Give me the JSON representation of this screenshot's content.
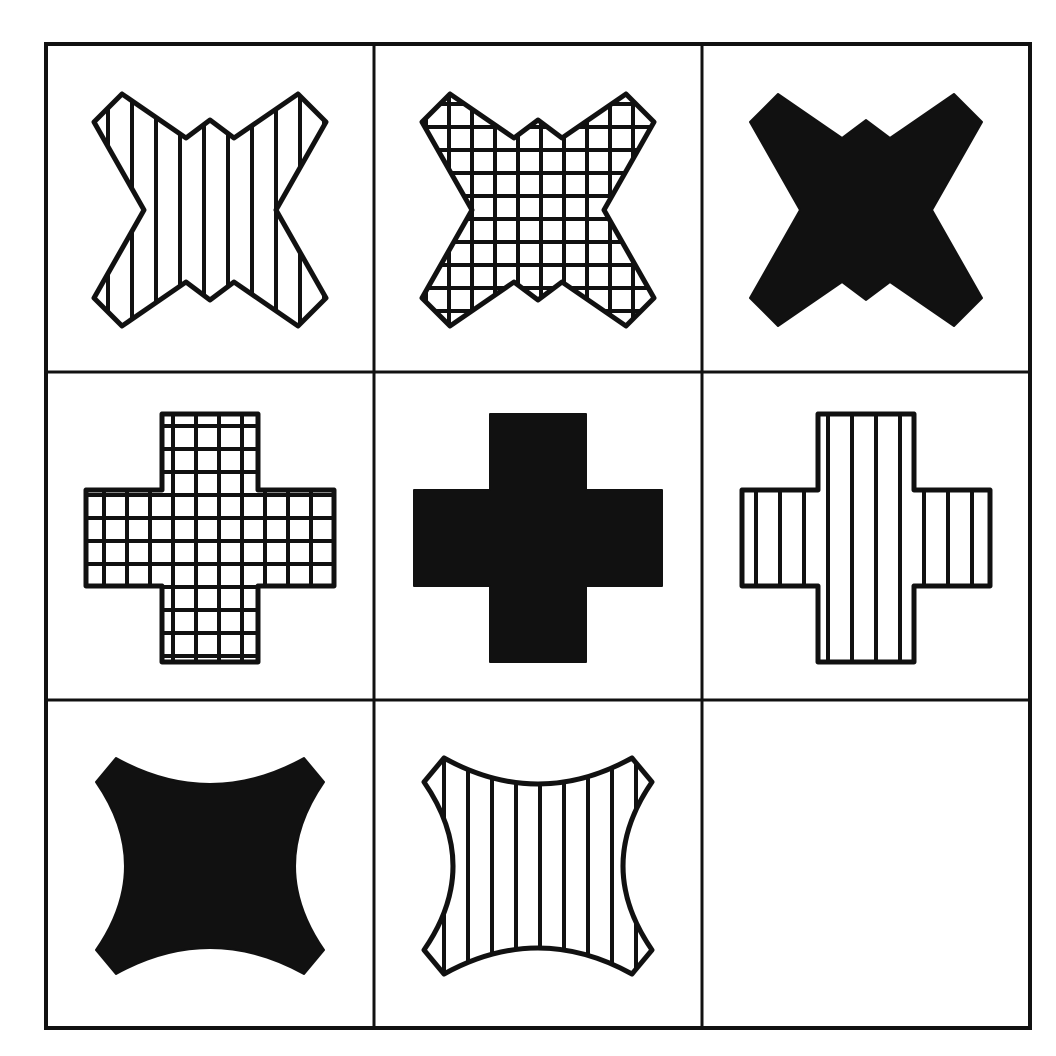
{
  "puzzle": {
    "type": "3x3 matrix",
    "colors": {
      "ink": "#111111",
      "background": "#ffffff"
    },
    "cells": [
      {
        "row": 1,
        "col": 1,
        "shape": "x-cross",
        "fill": "vertical-stripes"
      },
      {
        "row": 1,
        "col": 2,
        "shape": "x-cross",
        "fill": "grid"
      },
      {
        "row": 1,
        "col": 3,
        "shape": "x-cross",
        "fill": "solid"
      },
      {
        "row": 2,
        "col": 1,
        "shape": "plus-cross",
        "fill": "grid"
      },
      {
        "row": 2,
        "col": 2,
        "shape": "plus-cross",
        "fill": "solid"
      },
      {
        "row": 2,
        "col": 3,
        "shape": "plus-cross",
        "fill": "vertical-stripes"
      },
      {
        "row": 3,
        "col": 1,
        "shape": "concave-square",
        "fill": "solid"
      },
      {
        "row": 3,
        "col": 2,
        "shape": "concave-square",
        "fill": "vertical-stripes"
      },
      {
        "row": 3,
        "col": 3,
        "shape": "empty",
        "fill": "none"
      }
    ]
  }
}
